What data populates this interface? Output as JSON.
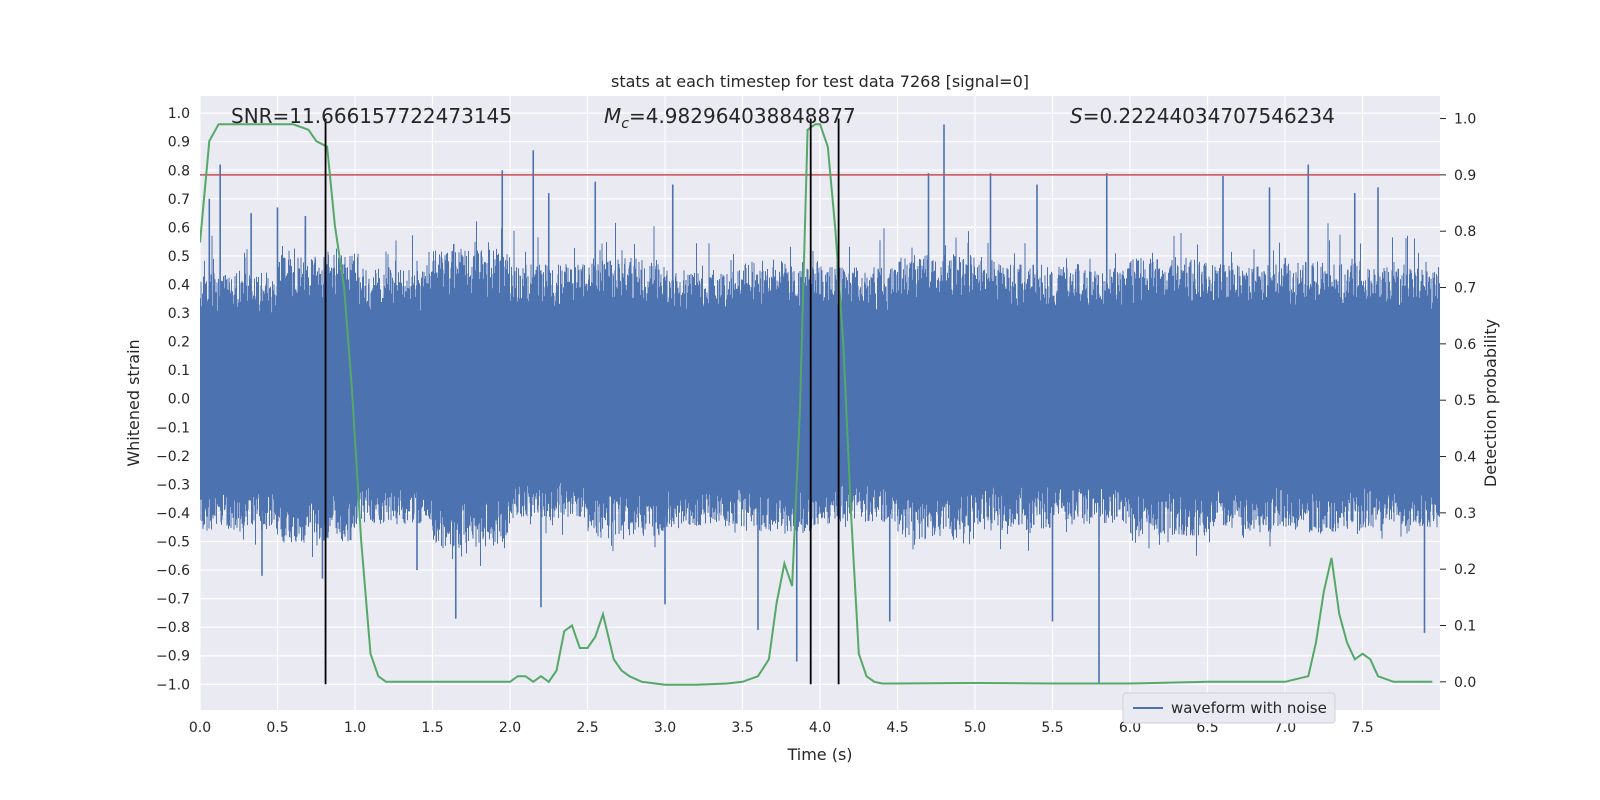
{
  "chart_data": {
    "type": "line",
    "title": "stats at each timestep for test data 7268 [signal=0]",
    "xlabel": "Time (s)",
    "ylabel": "Whitened strain",
    "y2label": "Detection probability",
    "xlim": [
      0.0,
      8.0
    ],
    "ylim": [
      -1.09,
      1.06
    ],
    "y2lim": [
      -0.05,
      1.04
    ],
    "xticks": [
      "0.0",
      "0.5",
      "1.0",
      "1.5",
      "2.0",
      "2.5",
      "3.0",
      "3.5",
      "4.0",
      "4.5",
      "5.0",
      "5.5",
      "6.0",
      "6.5",
      "7.0",
      "7.5"
    ],
    "yticks": [
      "1.0",
      "0.9",
      "0.8",
      "0.7",
      "0.6",
      "0.5",
      "0.4",
      "0.3",
      "0.2",
      "0.1",
      "0.0",
      "-0.1",
      "-0.2",
      "-0.3",
      "-0.4",
      "-0.5",
      "-0.6",
      "-0.7",
      "-0.8",
      "-0.9",
      "-1.0"
    ],
    "y2ticks": [
      "0.0",
      "0.1",
      "0.2",
      "0.3",
      "0.4",
      "0.5",
      "0.6",
      "0.7",
      "0.8",
      "0.9",
      "1.0"
    ],
    "grid": true,
    "legend": {
      "entries": [
        "waveform with noise"
      ],
      "placement": "lower-right"
    },
    "annotations": {
      "snr": "SNR=11.666157722473145",
      "mc_symbol": "M",
      "mc_sub": "c",
      "mc_value": "=4.982964038848877",
      "s_symbol": "S",
      "s_value": "=0.22244034707546234"
    },
    "threshold": {
      "y2": 0.9,
      "color": "#c44e52"
    },
    "vlines_x": [
      0.81,
      3.94,
      4.12
    ],
    "noise": {
      "name": "waveform with noise",
      "color": "#4c72b0",
      "band_min": [
        -0.44,
        -0.48,
        -0.42,
        -0.5,
        -0.4,
        -0.46,
        -0.43,
        -0.45,
        -0.41,
        -0.47,
        -0.44,
        -0.42,
        -0.46,
        -0.44,
        -0.45,
        -0.43
      ],
      "band_max": [
        0.42,
        0.48,
        0.44,
        0.5,
        0.45,
        0.47,
        0.43,
        0.46,
        0.44,
        0.48,
        0.45,
        0.44,
        0.47,
        0.45,
        0.46,
        0.44
      ],
      "spikes": [
        [
          0.13,
          0.82
        ],
        [
          0.06,
          0.7
        ],
        [
          0.33,
          0.65
        ],
        [
          0.5,
          0.67
        ],
        [
          0.68,
          0.64
        ],
        [
          0.79,
          -0.63
        ],
        [
          2.15,
          0.87
        ],
        [
          1.95,
          0.8
        ],
        [
          2.25,
          0.72
        ],
        [
          2.55,
          0.76
        ],
        [
          4.8,
          0.96
        ],
        [
          5.1,
          0.79
        ],
        [
          5.8,
          -1.0
        ],
        [
          5.4,
          0.75
        ],
        [
          6.6,
          0.78
        ],
        [
          7.15,
          0.82
        ],
        [
          7.45,
          0.72
        ],
        [
          3.85,
          -0.92
        ],
        [
          3.6,
          -0.81
        ],
        [
          1.65,
          -0.77
        ],
        [
          2.2,
          -0.73
        ],
        [
          3.0,
          -0.72
        ],
        [
          7.9,
          -0.82
        ],
        [
          4.45,
          -0.78
        ],
        [
          5.5,
          -0.78
        ],
        [
          1.4,
          -0.6
        ],
        [
          0.4,
          -0.62
        ],
        [
          4.7,
          0.79
        ],
        [
          5.85,
          0.79
        ],
        [
          6.9,
          0.74
        ],
        [
          7.6,
          0.74
        ],
        [
          3.05,
          0.75
        ]
      ]
    },
    "probability": {
      "color": "#55a868",
      "x": [
        0.0,
        0.06,
        0.12,
        0.2,
        0.3,
        0.4,
        0.5,
        0.6,
        0.7,
        0.75,
        0.82,
        0.87,
        0.93,
        0.98,
        1.04,
        1.1,
        1.15,
        1.2,
        1.3,
        1.4,
        1.5,
        1.6,
        1.7,
        1.8,
        1.9,
        2.0,
        2.05,
        2.1,
        2.15,
        2.2,
        2.25,
        2.3,
        2.35,
        2.4,
        2.45,
        2.5,
        2.55,
        2.6,
        2.67,
        2.72,
        2.77,
        2.85,
        3.0,
        3.2,
        3.4,
        3.5,
        3.6,
        3.67,
        3.72,
        3.77,
        3.82,
        3.87,
        3.92,
        3.97,
        4.0,
        4.05,
        4.1,
        4.15,
        4.2,
        4.25,
        4.3,
        4.35,
        4.4,
        4.5,
        5.0,
        5.5,
        6.0,
        6.5,
        7.0,
        7.15,
        7.2,
        7.25,
        7.3,
        7.35,
        7.4,
        7.45,
        7.5,
        7.55,
        7.6,
        7.7,
        7.95
      ],
      "y": [
        0.78,
        0.96,
        0.99,
        0.99,
        0.99,
        0.99,
        0.99,
        0.99,
        0.98,
        0.96,
        0.95,
        0.81,
        0.7,
        0.52,
        0.25,
        0.05,
        0.01,
        0.0,
        0.0,
        0.0,
        0.0,
        0.0,
        0.0,
        0.0,
        0.0,
        0.0,
        0.01,
        0.01,
        0.0,
        0.01,
        0.0,
        0.02,
        0.09,
        0.1,
        0.06,
        0.06,
        0.08,
        0.12,
        0.04,
        0.02,
        0.01,
        0.0,
        -0.005,
        -0.005,
        -0.003,
        0.0,
        0.01,
        0.04,
        0.14,
        0.21,
        0.17,
        0.48,
        0.98,
        0.99,
        0.99,
        0.95,
        0.8,
        0.6,
        0.3,
        0.05,
        0.01,
        0.0,
        -0.003,
        -0.003,
        -0.002,
        -0.003,
        -0.003,
        0.0,
        0.0,
        0.01,
        0.07,
        0.16,
        0.22,
        0.12,
        0.07,
        0.04,
        0.05,
        0.04,
        0.01,
        0.0,
        0.0
      ]
    }
  }
}
